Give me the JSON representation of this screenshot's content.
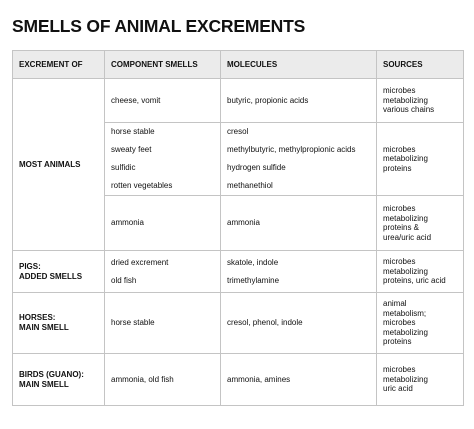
{
  "title": "SMELLS OF ANIMAL EXCREMENTS",
  "table": {
    "headers": [
      "EXCREMENT OF",
      "COMPONENT SMELLS",
      "MOLECULES",
      "SOURCES"
    ],
    "groups": [
      {
        "excrement": [
          "MOST ANIMALS"
        ],
        "rows": [
          {
            "smells": [
              "cheese, vomit"
            ],
            "molecules": [
              "butyric, propionic acids"
            ],
            "sources": [
              "microbes",
              "metabolizing",
              "various chains"
            ]
          },
          {
            "smells": [
              "horse stable",
              "sweaty feet",
              "sulfidic",
              "rotten vegetables"
            ],
            "molecules": [
              "cresol",
              "methylbutyric, methylpropionic acids",
              "hydrogen sulfide",
              "methanethiol"
            ],
            "sources": [
              "microbes",
              "metabolizing",
              "proteins"
            ]
          },
          {
            "smells": [
              "ammonia"
            ],
            "molecules": [
              "ammonia"
            ],
            "sources": [
              "microbes",
              "metabolizing",
              "proteins &",
              "urea/uric acid"
            ]
          }
        ]
      },
      {
        "excrement": [
          "PIGS:",
          "ADDED SMELLS"
        ],
        "rows": [
          {
            "smells": [
              "dried excrement",
              "old fish"
            ],
            "molecules": [
              "skatole, indole",
              "trimethylamine"
            ],
            "sources": [
              "microbes",
              "metabolizing",
              "proteins, uric acid"
            ]
          }
        ]
      },
      {
        "excrement": [
          "HORSES:",
          "MAIN SMELL"
        ],
        "rows": [
          {
            "smells": [
              "horse stable"
            ],
            "molecules": [
              "cresol, phenol, indole"
            ],
            "sources": [
              "animal",
              "metabolism;",
              "microbes",
              "metabolizing",
              "proteins"
            ]
          }
        ]
      },
      {
        "excrement": [
          "BIRDS (GUANO):",
          "MAIN SMELL"
        ],
        "rows": [
          {
            "smells": [
              "ammonia, old fish"
            ],
            "molecules": [
              "ammonia, amines"
            ],
            "sources": [
              "microbes",
              "metabolizing",
              "uric acid"
            ]
          }
        ]
      }
    ]
  }
}
